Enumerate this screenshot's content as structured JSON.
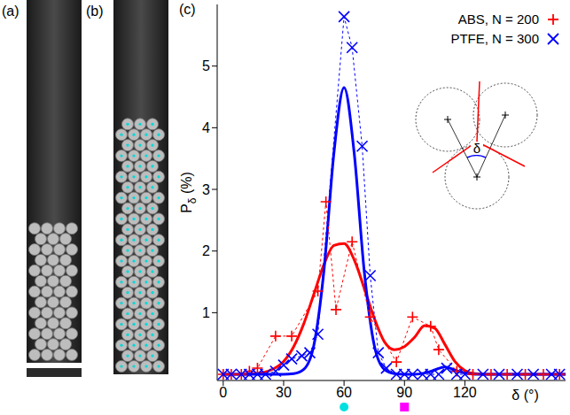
{
  "panel_labels": [
    "(a)",
    "(b)"
  ],
  "chart_data": {
    "type": "line",
    "panel_label": "(c)",
    "x_label": "δ (°)",
    "y_label": "Pδ (%)",
    "xlim": [
      -3,
      170
    ],
    "xticks": [
      0,
      30,
      60,
      90,
      120
    ],
    "ylim": [
      -0.1,
      6
    ],
    "yticks": [
      1,
      2,
      3,
      4,
      5
    ],
    "grid": false,
    "legend": "top right",
    "inset_label": "δ",
    "x_axis_markers": [
      {
        "value": 60,
        "color": "#00e0e0",
        "marker": "circle"
      },
      {
        "value": 90,
        "color": "#ff00ff",
        "marker": "square"
      }
    ],
    "series": [
      {
        "name": "ABS, N = 200",
        "color": "#ff0000",
        "marker": "plus",
        "line_style": "dashed",
        "x": [
          0,
          4,
          9,
          13,
          17,
          26,
          34,
          47,
          51,
          56,
          64,
          73,
          86,
          94,
          103,
          107,
          116,
          124,
          133,
          141,
          150,
          159,
          167
        ],
        "values": [
          0,
          0,
          0,
          0.05,
          0.1,
          0.62,
          0.62,
          1.35,
          2.8,
          1.05,
          2.15,
          0.93,
          0.2,
          0.93,
          0.78,
          0.4,
          0.05,
          0,
          0,
          0,
          0,
          0,
          0
        ],
        "fit": {
          "line_style": "solid",
          "x": [
            0,
            5,
            10,
            15,
            20,
            25,
            30,
            35,
            40,
            45,
            50,
            55,
            60,
            65,
            70,
            75,
            80,
            85,
            90,
            95,
            100,
            105,
            110,
            115,
            120,
            125,
            130,
            135,
            140,
            145,
            150,
            155,
            160,
            165,
            170
          ],
          "values": [
            0,
            0,
            0,
            0.01,
            0.03,
            0.09,
            0.21,
            0.45,
            0.82,
            1.3,
            1.78,
            2.09,
            2.12,
            1.86,
            1.4,
            0.91,
            0.53,
            0.4,
            0.45,
            0.6,
            0.79,
            0.75,
            0.49,
            0.21,
            0.06,
            0.01,
            0,
            0,
            0,
            0,
            0,
            0,
            0,
            0,
            0
          ]
        }
      },
      {
        "name": "PTFE, N = 300",
        "color": "#0000ff",
        "marker": "cross",
        "line_style": "dashed",
        "x": [
          0,
          4,
          9,
          13,
          17,
          21,
          26,
          30,
          34,
          39,
          43,
          47,
          60,
          64,
          69,
          73,
          77,
          81,
          86,
          90,
          94,
          99,
          103,
          107,
          111,
          116,
          120,
          129,
          137,
          146,
          154,
          163,
          167
        ],
        "values": [
          0,
          0,
          0,
          0,
          0,
          0,
          0.05,
          0.15,
          0.25,
          0.3,
          0.35,
          0.65,
          5.8,
          5.3,
          3.7,
          1.6,
          0.35,
          0.1,
          0,
          0,
          0,
          0,
          0,
          0,
          0.1,
          0,
          0,
          0,
          0,
          0,
          0,
          0,
          0
        ],
        "fit": {
          "line_style": "solid",
          "x": [
            0,
            5,
            10,
            15,
            20,
            25,
            30,
            35,
            40,
            45,
            50,
            55,
            60,
            65,
            70,
            75,
            80,
            85,
            90,
            95,
            100,
            105,
            110,
            115,
            120,
            125,
            130,
            135,
            140,
            145,
            150,
            155,
            160,
            165,
            170
          ],
          "values": [
            0,
            0,
            0,
            0,
            0,
            0,
            0,
            0.01,
            0.08,
            0.47,
            1.68,
            3.6,
            4.65,
            3.6,
            1.68,
            0.47,
            0.08,
            0.01,
            0,
            0,
            0.02,
            0.07,
            0.12,
            0.07,
            0.02,
            0,
            0,
            0,
            0,
            0,
            0,
            0,
            0,
            0,
            0
          ]
        }
      }
    ]
  }
}
